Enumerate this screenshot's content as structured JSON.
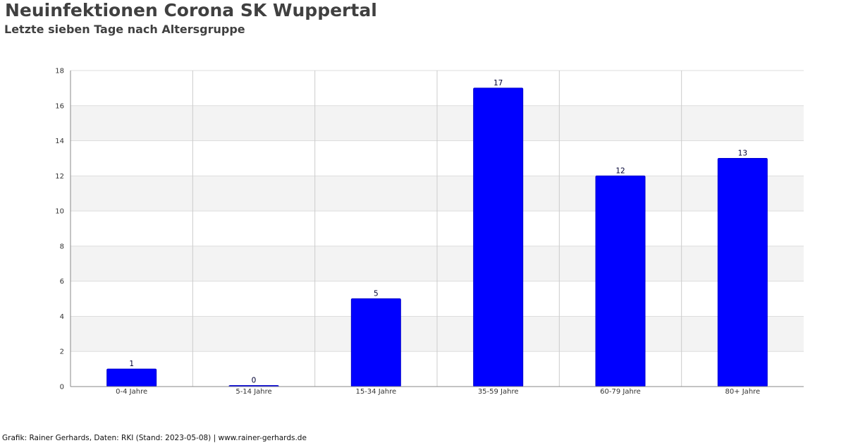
{
  "chart_data": {
    "type": "bar",
    "title": "Neuinfektionen Corona SK Wuppertal",
    "subtitle": "Letzte sieben Tage nach Altersgruppe",
    "categories": [
      "0-4 Jahre",
      "5-14 Jahre",
      "15-34 Jahre",
      "35-59 Jahre",
      "60-79 Jahre",
      "80+ Jahre"
    ],
    "values": [
      1,
      0,
      5,
      17,
      12,
      13
    ],
    "ylim": [
      0,
      18
    ],
    "yticks": [
      0,
      2,
      4,
      6,
      8,
      10,
      12,
      14,
      16,
      18
    ],
    "xlabel": "",
    "ylabel": "",
    "grid": true,
    "legend": "none",
    "colors": {
      "bar": "#0000ff",
      "bar_border": "#0000cc",
      "band": "#f3f3f3",
      "grid": "#dddddd",
      "axis": "#888888"
    }
  },
  "footer": "Grafik: Rainer Gerhards, Daten: RKI (Stand: 2023-05-08) | www.rainer-gerhards.de"
}
